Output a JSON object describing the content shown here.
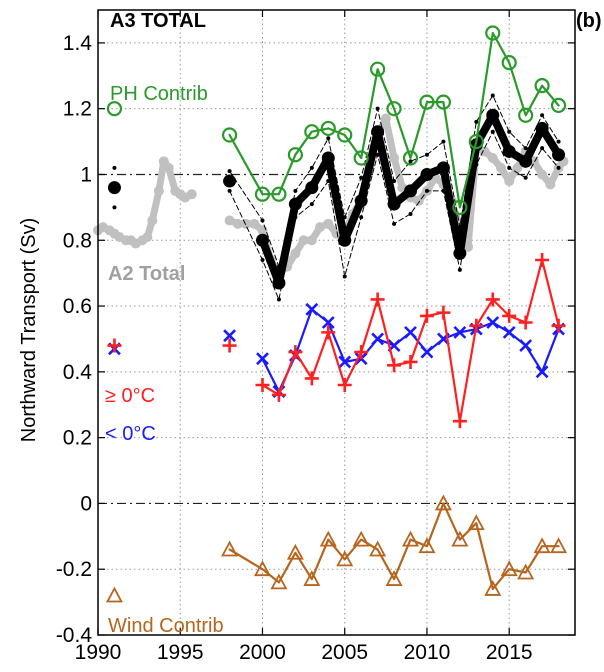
{
  "chart_data": {
    "type": "line",
    "title": "A3 TOTAL",
    "panel_label": "(b)",
    "ylabel": "Northward Transport (Sv)",
    "xlim": [
      1990,
      2019
    ],
    "ylim": [
      -0.4,
      1.5
    ],
    "xticks": [
      1990,
      1995,
      2000,
      2005,
      2010,
      2015
    ],
    "yticks": [
      -0.4,
      -0.2,
      0,
      0.2,
      0.4,
      0.6,
      0.8,
      1,
      1.2,
      1.4
    ],
    "ytick_labels": [
      "-0.4",
      "-0.2",
      "0",
      "0.2",
      "0.4",
      "0.6",
      "0.8",
      "1",
      "1.2",
      "1.4"
    ],
    "reference_lines": [
      1,
      0
    ],
    "grid": true,
    "annotations": {
      "ph_contrib": "PH Contrib",
      "a2_total": "A2 Total",
      "warm": "≥ 0°C",
      "cold": "< 0°C",
      "wind_contrib": "Wind Contrib"
    },
    "series": [
      {
        "key": "a2_total",
        "color": "#c0c0c0",
        "x": [
          1990,
          1990.3,
          1990.7,
          1991,
          1991.3,
          1991.7,
          1992,
          1992.3,
          1992.7,
          1993,
          1993.3,
          1993.7,
          1994,
          1994.3,
          1994.7,
          1995,
          1995.3,
          1995.7,
          1998,
          1998.5,
          1999,
          1999.5,
          2000,
          2000.5,
          2001,
          2001.5,
          2002,
          2002.5,
          2003,
          2003.5,
          2004,
          2004.5,
          2005,
          2005.5,
          2006,
          2006.5,
          2007,
          2007.5,
          2008,
          2008.5,
          2009,
          2009.5,
          2010,
          2010.5,
          2011,
          2011.5,
          2012,
          2012.5,
          2013,
          2013.5,
          2014,
          2014.5,
          2015,
          2015.5,
          2016,
          2016.5,
          2017,
          2017.5,
          2018,
          2018.3
        ],
        "values": [
          0.83,
          0.84,
          0.83,
          0.82,
          0.81,
          0.8,
          0.8,
          0.79,
          0.8,
          0.81,
          0.86,
          0.95,
          1.04,
          1.02,
          0.95,
          0.94,
          0.93,
          0.94,
          0.86,
          0.85,
          0.85,
          0.85,
          0.83,
          0.74,
          0.7,
          0.72,
          0.76,
          0.8,
          0.8,
          0.84,
          0.85,
          0.82,
          0.82,
          0.88,
          0.92,
          1.02,
          1.12,
          1.17,
          1.05,
          0.96,
          0.93,
          0.92,
          0.95,
          0.99,
          0.97,
          0.92,
          0.84,
          0.78,
          1.08,
          1.07,
          1.05,
          1.02,
          0.98,
          1.02,
          1.07,
          1.04,
          1.0,
          0.97,
          1.02,
          1.04
        ]
      },
      {
        "key": "a3_total",
        "color": "#000000",
        "x": [
          1998,
          2000,
          2001,
          2002,
          2003,
          2004,
          2005,
          2006,
          2007,
          2008,
          2009,
          2010,
          2011,
          2012,
          2013,
          2014,
          2015,
          2016,
          2017,
          2018
        ],
        "values": [
          0.98,
          0.8,
          0.67,
          0.91,
          0.96,
          1.05,
          0.8,
          0.92,
          1.13,
          0.91,
          0.95,
          1.0,
          1.02,
          0.76,
          1.09,
          1.18,
          1.07,
          1.04,
          1.14,
          1.06
        ],
        "isolated": {
          "x": 1991,
          "value": 0.96
        }
      },
      {
        "key": "a3_upper_bound",
        "color": "#000000",
        "x": [
          1998,
          2000,
          2001,
          2002,
          2003,
          2004,
          2005,
          2006,
          2007,
          2008,
          2009,
          2010,
          2011,
          2012,
          2013,
          2014,
          2015,
          2016,
          2017,
          2018
        ],
        "values": [
          1.01,
          0.86,
          0.72,
          0.95,
          1.02,
          1.11,
          0.87,
          0.99,
          1.2,
          0.98,
          1.04,
          1.06,
          1.1,
          0.84,
          1.16,
          1.24,
          1.13,
          1.08,
          1.18,
          1.1
        ],
        "isolated": {
          "x": 1991,
          "value": 1.02
        }
      },
      {
        "key": "a3_lower_bound",
        "color": "#000000",
        "x": [
          1998,
          2000,
          2001,
          2002,
          2003,
          2004,
          2005,
          2006,
          2007,
          2008,
          2009,
          2010,
          2011,
          2012,
          2013,
          2014,
          2015,
          2016,
          2017,
          2018
        ],
        "values": [
          0.95,
          0.74,
          0.62,
          0.87,
          0.91,
          0.98,
          0.69,
          0.87,
          1.06,
          0.85,
          0.88,
          0.95,
          0.95,
          0.71,
          1.03,
          1.13,
          1.02,
          0.99,
          1.08,
          1.02
        ],
        "isolated": {
          "x": 1991,
          "value": 0.9
        }
      },
      {
        "key": "ph_contrib",
        "color": "#2a9a2a",
        "marker": "circle",
        "x": [
          1998,
          2000,
          2001,
          2002,
          2003,
          2004,
          2005,
          2006,
          2007,
          2008,
          2009,
          2010,
          2011,
          2012,
          2013,
          2014,
          2015,
          2016,
          2017,
          2018
        ],
        "values": [
          1.12,
          0.94,
          0.94,
          1.06,
          1.13,
          1.14,
          1.12,
          1.05,
          1.32,
          1.2,
          1.05,
          1.22,
          1.22,
          0.9,
          1.1,
          1.43,
          1.34,
          1.18,
          1.27,
          1.21
        ],
        "isolated": {
          "x": 1991,
          "value": 1.2
        }
      },
      {
        "key": "warm",
        "color": "#ff2020",
        "marker": "plus",
        "x": [
          2000,
          2001,
          2002,
          2003,
          2004,
          2005,
          2006,
          2007,
          2008,
          2009,
          2010,
          2011,
          2012,
          2013,
          2014,
          2015,
          2016,
          2017,
          2018
        ],
        "values": [
          0.36,
          0.33,
          0.46,
          0.38,
          0.52,
          0.36,
          0.46,
          0.62,
          0.42,
          0.43,
          0.57,
          0.58,
          0.25,
          0.54,
          0.62,
          0.57,
          0.55,
          0.74,
          0.54
        ],
        "isolated_points": [
          {
            "x": 1991,
            "value": 0.48
          },
          {
            "x": 1998,
            "value": 0.48
          }
        ]
      },
      {
        "key": "cold",
        "color": "#1a1aff",
        "marker": "x",
        "x": [
          2000,
          2001,
          2002,
          2003,
          2004,
          2005,
          2006,
          2007,
          2008,
          2009,
          2010,
          2011,
          2012,
          2013,
          2014,
          2015,
          2016,
          2017,
          2018
        ],
        "values": [
          0.44,
          0.34,
          0.45,
          0.59,
          0.55,
          0.43,
          0.44,
          0.5,
          0.48,
          0.52,
          0.46,
          0.5,
          0.52,
          0.53,
          0.55,
          0.52,
          0.48,
          0.4,
          0.53
        ],
        "isolated_points": [
          {
            "x": 1991,
            "value": 0.47
          },
          {
            "x": 1998,
            "value": 0.51
          }
        ]
      },
      {
        "key": "wind_contrib",
        "color": "#b5651d",
        "marker": "triangle",
        "x": [
          1998,
          2000,
          2001,
          2002,
          2003,
          2004,
          2005,
          2006,
          2007,
          2008,
          2009,
          2010,
          2011,
          2012,
          2013,
          2014,
          2015,
          2016,
          2017,
          2018
        ],
        "values": [
          -0.14,
          -0.2,
          -0.24,
          -0.15,
          -0.23,
          -0.11,
          -0.17,
          -0.11,
          -0.14,
          -0.23,
          -0.11,
          -0.13,
          0.0,
          -0.11,
          -0.06,
          -0.26,
          -0.2,
          -0.21,
          -0.13,
          -0.13
        ],
        "isolated": {
          "x": 1991,
          "value": -0.28
        }
      }
    ]
  }
}
